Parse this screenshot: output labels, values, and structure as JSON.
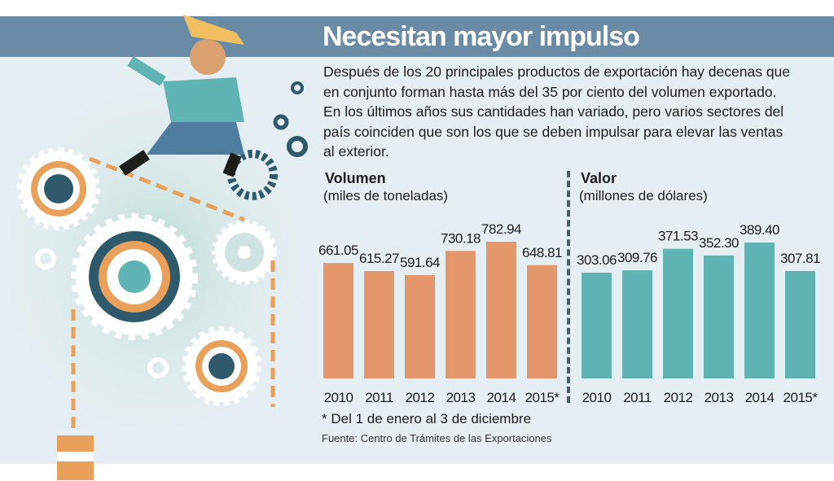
{
  "title": "Necesitan mayor impulso",
  "intro": "Después de los 20 principales productos de exportación hay decenas que en conjunto forman hasta más del 35 por ciento del volumen exportado. En los últimos años sus cantidades han variado, pero varios sectores del país coinciden que son los que se deben impulsar para elevar las ventas al exterior.",
  "footnote": "* Del 1 de enero al 3 de diciembre",
  "source": "Fuente: Centro de Trámites de las Exportaciones",
  "colors": {
    "header_band": "#6a8ba6",
    "volumen_bars": "#e3976a",
    "valor_bars": "#5fb4b3",
    "background": "#e5eef2"
  },
  "chart_data": [
    {
      "type": "bar",
      "title": "Volumen",
      "subtitle": "(miles de toneladas)",
      "categories": [
        "2010",
        "2011",
        "2012",
        "2013",
        "2014",
        "2015*"
      ],
      "values": [
        661.05,
        615.27,
        591.64,
        730.18,
        782.94,
        648.81
      ],
      "value_labels": [
        "661.05",
        "615.27",
        "591.64",
        "730.18",
        "782.94",
        "648.81"
      ],
      "color": "#e3976a",
      "grid": false
    },
    {
      "type": "bar",
      "title": "Valor",
      "subtitle": "(millones de dólares)",
      "categories": [
        "2010",
        "2011",
        "2012",
        "2013",
        "2014",
        "2015*"
      ],
      "values": [
        303.06,
        309.76,
        371.53,
        352.3,
        389.4,
        307.81
      ],
      "value_labels": [
        "303.06",
        "309.76",
        "371.53",
        "352.30",
        "389.40",
        "307.81"
      ],
      "color": "#5fb4b3",
      "grid": false
    }
  ]
}
